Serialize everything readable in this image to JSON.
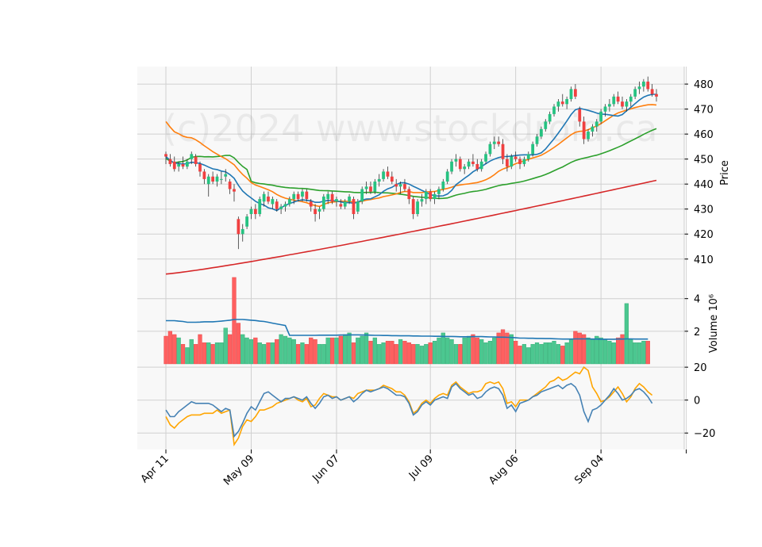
{
  "watermark": "(c)2024 www.stockdroid.ca",
  "colors": {
    "up": "#26c281",
    "down": "#f04040",
    "up_vol": "#4cc790",
    "down_vol": "#ff6060",
    "ma1": "#1f77b4",
    "ma2": "#ff7f0e",
    "ma3": "#2ca02c",
    "ma4": "#d62728",
    "vol_ma": "#1f77b4",
    "osc1": "#4682b4",
    "osc2": "#ffa500",
    "grid": "#d0d0d0",
    "panel_bg": "#f8f8f8"
  },
  "chart_data": {
    "type": "candlestick",
    "start_date": "2024-04-11",
    "x_tick_labels": [
      "Apr 11",
      "May 09",
      "Jun 07",
      "Jul 09",
      "Aug 06",
      "Sep 04"
    ],
    "price_panel": {
      "ylabel": "Price",
      "ylim": [
        402,
        487
      ],
      "yticks": [
        410,
        420,
        430,
        440,
        450,
        460,
        470,
        480
      ],
      "moving_averages": [
        "ma1",
        "ma2",
        "ma3",
        "ma4"
      ]
    },
    "volume_panel": {
      "ylabel": "Volume  10⁶",
      "ylim": [
        0,
        5.2
      ],
      "yticks": [
        2,
        4
      ]
    },
    "oscillator_panel": {
      "ylabel": "",
      "ylim": [
        -30,
        22
      ],
      "yticks": [
        -20,
        0,
        20
      ]
    },
    "ohlc": [
      [
        452,
        453,
        448,
        451
      ],
      [
        450,
        452,
        447,
        448
      ],
      [
        449,
        451,
        445,
        446
      ],
      [
        447,
        449,
        445,
        448
      ],
      [
        448,
        451,
        446,
        447
      ],
      [
        447,
        450,
        446,
        449
      ],
      [
        450,
        453,
        448,
        452
      ],
      [
        451,
        452,
        447,
        448
      ],
      [
        448,
        449,
        443,
        445
      ],
      [
        445,
        446,
        440,
        442
      ],
      [
        440,
        444,
        435,
        443
      ],
      [
        443,
        445,
        440,
        441
      ],
      [
        441,
        444,
        439,
        443
      ],
      [
        442,
        445,
        440,
        442
      ],
      [
        443,
        446,
        441,
        444
      ],
      [
        441,
        442,
        436,
        438
      ],
      [
        438,
        440,
        433,
        437
      ],
      [
        426,
        427,
        414,
        420
      ],
      [
        420,
        424,
        417,
        422
      ],
      [
        423,
        428,
        422,
        427
      ],
      [
        428,
        431,
        426,
        430
      ],
      [
        430,
        432,
        426,
        428
      ],
      [
        428,
        435,
        427,
        434
      ],
      [
        433,
        437,
        431,
        436
      ],
      [
        435,
        437,
        432,
        433
      ],
      [
        432,
        435,
        430,
        434
      ],
      [
        433,
        434,
        429,
        430
      ],
      [
        430,
        432,
        428,
        431
      ],
      [
        431,
        433,
        429,
        432
      ],
      [
        432,
        435,
        431,
        434
      ],
      [
        434,
        437,
        432,
        436
      ],
      [
        436,
        437,
        433,
        434
      ],
      [
        435,
        438,
        433,
        437
      ],
      [
        437,
        438,
        433,
        434
      ],
      [
        433,
        434,
        429,
        431
      ],
      [
        430,
        432,
        425,
        428
      ],
      [
        429,
        431,
        426,
        430
      ],
      [
        430,
        436,
        429,
        435
      ],
      [
        434,
        437,
        432,
        436
      ],
      [
        436,
        437,
        432,
        433
      ],
      [
        433,
        435,
        431,
        434
      ],
      [
        432,
        434,
        430,
        431
      ],
      [
        431,
        434,
        430,
        433
      ],
      [
        433,
        436,
        432,
        435
      ],
      [
        434,
        435,
        426,
        428
      ],
      [
        429,
        434,
        428,
        433
      ],
      [
        433,
        439,
        432,
        438
      ],
      [
        438,
        441,
        436,
        439
      ],
      [
        439,
        441,
        436,
        437
      ],
      [
        437,
        442,
        436,
        441
      ],
      [
        441,
        444,
        439,
        442
      ],
      [
        442,
        446,
        441,
        445
      ],
      [
        445,
        447,
        442,
        443
      ],
      [
        443,
        445,
        440,
        441
      ],
      [
        440,
        442,
        437,
        439
      ],
      [
        439,
        441,
        436,
        440
      ],
      [
        440,
        442,
        437,
        438
      ],
      [
        438,
        439,
        432,
        434
      ],
      [
        434,
        435,
        426,
        428
      ],
      [
        428,
        434,
        427,
        433
      ],
      [
        433,
        436,
        431,
        434
      ],
      [
        434,
        438,
        432,
        437
      ],
      [
        437,
        438,
        433,
        434
      ],
      [
        434,
        437,
        432,
        436
      ],
      [
        436,
        439,
        434,
        438
      ],
      [
        438,
        442,
        437,
        441
      ],
      [
        441,
        446,
        440,
        445
      ],
      [
        445,
        450,
        444,
        449
      ],
      [
        449,
        452,
        447,
        450
      ],
      [
        450,
        451,
        445,
        446
      ],
      [
        446,
        448,
        444,
        447
      ],
      [
        447,
        450,
        446,
        449
      ],
      [
        449,
        452,
        447,
        448
      ],
      [
        448,
        450,
        445,
        446
      ],
      [
        446,
        450,
        445,
        449
      ],
      [
        449,
        453,
        448,
        452
      ],
      [
        452,
        457,
        451,
        456
      ],
      [
        456,
        459,
        454,
        457
      ],
      [
        457,
        459,
        455,
        456
      ],
      [
        456,
        458,
        448,
        450
      ],
      [
        450,
        452,
        445,
        447
      ],
      [
        447,
        452,
        446,
        451
      ],
      [
        451,
        453,
        449,
        450
      ],
      [
        450,
        451,
        446,
        448
      ],
      [
        448,
        451,
        447,
        450
      ],
      [
        450,
        453,
        449,
        452
      ],
      [
        452,
        457,
        451,
        456
      ],
      [
        456,
        460,
        455,
        459
      ],
      [
        459,
        463,
        458,
        462
      ],
      [
        462,
        466,
        461,
        465
      ],
      [
        465,
        469,
        464,
        468
      ],
      [
        468,
        472,
        467,
        471
      ],
      [
        471,
        474,
        469,
        473
      ],
      [
        473,
        476,
        471,
        472
      ],
      [
        472,
        475,
        470,
        474
      ],
      [
        474,
        479,
        473,
        478
      ],
      [
        478,
        480,
        474,
        475
      ],
      [
        470,
        471,
        463,
        465
      ],
      [
        465,
        467,
        456,
        458
      ],
      [
        458,
        462,
        457,
        461
      ],
      [
        461,
        464,
        459,
        463
      ],
      [
        463,
        466,
        461,
        465
      ],
      [
        465,
        470,
        464,
        469
      ],
      [
        469,
        472,
        467,
        471
      ],
      [
        471,
        474,
        469,
        472
      ],
      [
        472,
        476,
        471,
        475
      ],
      [
        475,
        477,
        472,
        473
      ],
      [
        473,
        475,
        470,
        471
      ],
      [
        471,
        474,
        469,
        473
      ],
      [
        473,
        476,
        471,
        475
      ],
      [
        475,
        479,
        474,
        478
      ],
      [
        478,
        481,
        476,
        479
      ],
      [
        479,
        482,
        477,
        481
      ],
      [
        481,
        483,
        477,
        478
      ],
      [
        478,
        480,
        475,
        476
      ],
      [
        476,
        478,
        473,
        475
      ]
    ],
    "volume": [
      1.7,
      2.0,
      1.8,
      1.6,
      1.2,
      1.0,
      1.5,
      1.2,
      1.8,
      1.3,
      1.3,
      1.2,
      1.3,
      1.3,
      2.2,
      1.8,
      5.3,
      2.5,
      1.8,
      1.6,
      1.5,
      1.6,
      1.3,
      1.2,
      1.3,
      1.3,
      1.5,
      1.8,
      1.7,
      1.6,
      1.5,
      1.2,
      1.3,
      1.2,
      1.6,
      1.5,
      1.2,
      1.2,
      1.6,
      1.6,
      1.6,
      1.7,
      1.8,
      1.9,
      1.3,
      1.6,
      1.7,
      1.9,
      1.4,
      1.6,
      1.2,
      1.3,
      1.4,
      1.4,
      1.2,
      1.5,
      1.4,
      1.3,
      1.2,
      1.2,
      1.1,
      1.2,
      1.3,
      1.4,
      1.6,
      1.9,
      1.6,
      1.5,
      1.2,
      1.2,
      1.6,
      1.7,
      1.8,
      1.6,
      1.5,
      1.3,
      1.4,
      1.6,
      1.9,
      2.1,
      1.9,
      1.8,
      1.4,
      1.1,
      1.2,
      1.0,
      1.2,
      1.3,
      1.2,
      1.3,
      1.3,
      1.4,
      1.2,
      1.1,
      1.3,
      1.5,
      2.0,
      1.9,
      1.8,
      1.6,
      1.5,
      1.7,
      1.6,
      1.5,
      1.4,
      1.3,
      1.6,
      1.8,
      3.7,
      1.5,
      1.3,
      1.3,
      1.4,
      1.4
    ],
    "volume_ma": [
      2.65,
      2.65,
      2.65,
      2.62,
      2.6,
      2.55,
      2.55,
      2.55,
      2.56,
      2.58,
      2.58,
      2.58,
      2.6,
      2.62,
      2.65,
      2.68,
      2.72,
      2.72,
      2.72,
      2.7,
      2.68,
      2.66,
      2.62,
      2.6,
      2.55,
      2.5,
      2.45,
      2.4,
      2.35,
      1.75,
      1.75,
      1.75,
      1.75,
      1.75,
      1.75,
      1.75,
      1.76,
      1.76,
      1.76,
      1.76,
      1.76,
      1.77,
      1.77,
      1.78,
      1.78,
      1.78,
      1.77,
      1.77,
      1.76,
      1.75,
      1.75,
      1.74,
      1.74,
      1.73,
      1.73,
      1.72,
      1.72,
      1.72,
      1.71,
      1.71,
      1.7,
      1.7,
      1.7,
      1.69,
      1.69,
      1.68,
      1.68,
      1.68,
      1.67,
      1.66,
      1.66,
      1.66,
      1.67,
      1.67,
      1.67,
      1.66,
      1.65,
      1.65,
      1.64,
      1.64,
      1.63,
      1.62,
      1.6,
      1.58,
      1.58,
      1.57,
      1.57,
      1.56,
      1.56,
      1.55,
      1.55,
      1.54,
      1.53,
      1.52,
      1.52,
      1.52,
      1.53,
      1.53,
      1.53,
      1.53,
      1.52,
      1.52,
      1.51,
      1.51,
      1.51,
      1.51,
      1.52,
      1.52,
      1.53,
      1.53,
      1.52,
      1.52,
      1.52,
      1.52
    ],
    "oscillator_1": [
      -6,
      -10,
      -10,
      -7,
      -5,
      -3,
      -1,
      -2,
      -2,
      -2,
      -2,
      -3,
      -5,
      -7,
      -5,
      -6,
      -22,
      -19,
      -14,
      -8,
      -4,
      -6,
      -1,
      4,
      5,
      3,
      1,
      -1,
      1,
      1,
      2,
      1,
      0,
      2,
      -2,
      -5,
      -2,
      2,
      3,
      1,
      2,
      0,
      1,
      2,
      -1,
      1,
      4,
      6,
      5,
      6,
      7,
      8,
      7,
      5,
      3,
      3,
      2,
      -2,
      -9,
      -7,
      -3,
      -1,
      -3,
      0,
      1,
      2,
      1,
      8,
      10,
      7,
      5,
      3,
      4,
      1,
      2,
      5,
      7,
      8,
      7,
      3,
      -5,
      -3,
      -7,
      -2,
      -1,
      0,
      2,
      3,
      5,
      6,
      7,
      8,
      9,
      7,
      9,
      10,
      8,
      3,
      -7,
      -13,
      -6,
      -5,
      -3,
      0,
      3,
      7,
      4,
      0,
      1,
      3,
      6,
      7,
      5,
      2,
      -2
    ],
    "oscillator_2": [
      -10,
      -15,
      -17,
      -14,
      -12,
      -10,
      -9,
      -9,
      -9,
      -8,
      -8,
      -8,
      -6,
      -8,
      -7,
      -6,
      -27,
      -23,
      -16,
      -12,
      -13,
      -10,
      -6,
      -6,
      -5,
      -4,
      -2,
      -1,
      0,
      1,
      2,
      0,
      -1,
      1,
      -4,
      -3,
      1,
      4,
      3,
      2,
      2,
      0,
      1,
      2,
      1,
      4,
      5,
      6,
      6,
      6,
      7,
      9,
      8,
      7,
      5,
      5,
      3,
      -1,
      -8,
      -6,
      -2,
      0,
      -2,
      1,
      3,
      4,
      3,
      9,
      11,
      8,
      6,
      4,
      5,
      5,
      6,
      10,
      11,
      10,
      11,
      7,
      -2,
      -1,
      -4,
      0,
      0,
      0,
      2,
      4,
      6,
      8,
      11,
      12,
      14,
      12,
      13,
      15,
      17,
      16,
      20,
      18,
      8,
      4,
      -1,
      0,
      2,
      5,
      8,
      4,
      -1,
      2,
      7,
      10,
      8,
      5,
      3
    ]
  }
}
